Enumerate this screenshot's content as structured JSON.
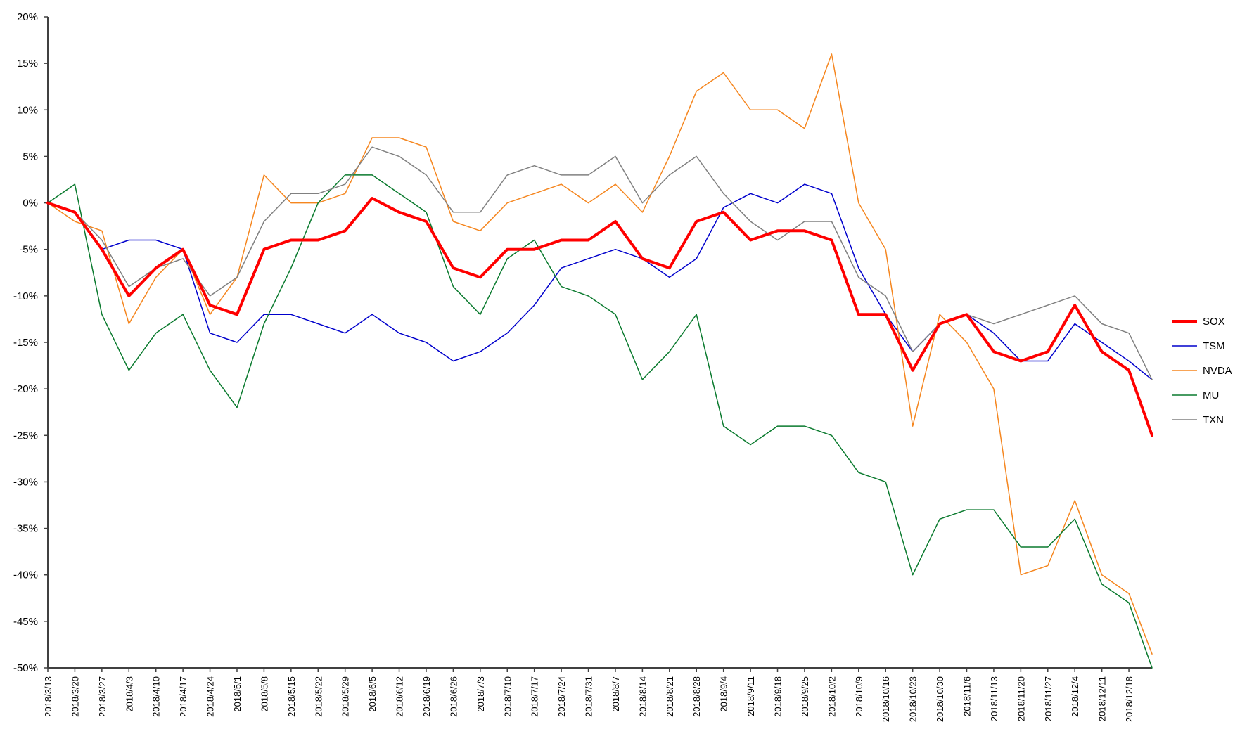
{
  "chart_data": {
    "type": "line",
    "title": "",
    "xlabel": "",
    "ylabel": "",
    "ylim": [
      -50,
      20
    ],
    "y_unit": "%",
    "y_ticks": [
      "20%",
      "15%",
      "10%",
      "5%",
      "0%",
      "-5%",
      "-10%",
      "-15%",
      "-20%",
      "-25%",
      "-30%",
      "-35%",
      "-40%",
      "-45%",
      "-50%"
    ],
    "y_tick_values": [
      20,
      15,
      10,
      5,
      0,
      -5,
      -10,
      -15,
      -20,
      -25,
      -30,
      -35,
      -40,
      -45,
      -50
    ],
    "x_ticks": [
      "2018/3/13",
      "2018/3/20",
      "2018/3/27",
      "2018/4/3",
      "2018/4/10",
      "2018/4/17",
      "2018/4/24",
      "2018/5/1",
      "2018/5/8",
      "2018/5/15",
      "2018/5/22",
      "2018/5/29",
      "2018/6/5",
      "2018/6/12",
      "2018/6/19",
      "2018/6/26",
      "2018/7/3",
      "2018/7/10",
      "2018/7/17",
      "2018/7/24",
      "2018/7/31",
      "2018/8/7",
      "2018/8/14",
      "2018/8/21",
      "2018/8/28",
      "2018/9/4",
      "2018/9/11",
      "2018/9/18",
      "2018/9/25",
      "2018/10/2",
      "2018/10/9",
      "2018/10/16",
      "2018/10/23",
      "2018/10/30",
      "2018/11/6",
      "2018/11/13",
      "2018/11/20",
      "2018/11/27",
      "2018/12/4",
      "2018/12/11",
      "2018/12/18"
    ],
    "x": [
      "2018/3/13",
      "2018/3/20",
      "2018/3/27",
      "2018/4/3",
      "2018/4/10",
      "2018/4/17",
      "2018/4/24",
      "2018/5/1",
      "2018/5/8",
      "2018/5/15",
      "2018/5/22",
      "2018/5/29",
      "2018/6/5",
      "2018/6/12",
      "2018/6/19",
      "2018/6/26",
      "2018/7/3",
      "2018/7/10",
      "2018/7/17",
      "2018/7/24",
      "2018/7/31",
      "2018/8/7",
      "2018/8/14",
      "2018/8/21",
      "2018/8/28",
      "2018/9/4",
      "2018/9/11",
      "2018/9/18",
      "2018/9/25",
      "2018/10/2",
      "2018/10/9",
      "2018/10/16",
      "2018/10/23",
      "2018/10/30",
      "2018/11/6",
      "2018/11/13",
      "2018/11/20",
      "2018/11/27",
      "2018/12/4",
      "2018/12/11",
      "2018/12/18",
      "2018/12/24"
    ],
    "legend_position": "right",
    "grid": false,
    "series": [
      {
        "name": "SOX",
        "color": "#ff0000",
        "width": 4,
        "values": [
          0,
          -1,
          -5,
          -10,
          -7,
          -5,
          -11,
          -12,
          -5,
          -4,
          -4,
          -3,
          0.5,
          -1,
          -2,
          -7,
          -8,
          -5,
          -5,
          -4,
          -4,
          -2,
          -6,
          -7,
          -2,
          -1,
          -4,
          -3,
          -3,
          -4,
          -12,
          -12,
          -18,
          -13,
          -12,
          -16,
          -17,
          -16,
          -11,
          -16,
          -18,
          -25
        ]
      },
      {
        "name": "TSM",
        "color": "#0000cc",
        "width": 1.5,
        "values": [
          0,
          -1,
          -5,
          -4,
          -4,
          -5,
          -14,
          -15,
          -12,
          -12,
          -13,
          -14,
          -12,
          -14,
          -15,
          -17,
          -16,
          -14,
          -11,
          -7,
          -6,
          -5,
          -6,
          -8,
          -6,
          -0.5,
          1,
          0,
          2,
          1,
          -7,
          -12,
          -16,
          -13,
          -12,
          -14,
          -17,
          -17,
          -13,
          -15,
          -17,
          -19
        ]
      },
      {
        "name": "NVDA",
        "color": "#f5861f",
        "width": 1.5,
        "values": [
          0,
          -2,
          -3,
          -13,
          -8,
          -5,
          -12,
          -8,
          3,
          0,
          0,
          1,
          7,
          7,
          6,
          -2,
          -3,
          0,
          1,
          2,
          0,
          2,
          -1,
          5,
          12,
          14,
          10,
          10,
          8,
          16,
          0,
          -5,
          -24,
          -12,
          -15,
          -20,
          -40,
          -39,
          -32,
          -40,
          -42,
          -48.5
        ]
      },
      {
        "name": "MU",
        "color": "#0a7a2e",
        "width": 1.5,
        "values": [
          0,
          2,
          -12,
          -18,
          -14,
          -12,
          -18,
          -22,
          -13,
          -7,
          0,
          3,
          3,
          1,
          -1,
          -9,
          -12,
          -6,
          -4,
          -9,
          -10,
          -12,
          -19,
          -16,
          -12,
          -24,
          -26,
          -24,
          -24,
          -25,
          -29,
          -30,
          -40,
          -34,
          -33,
          -33,
          -37,
          -37,
          -34,
          -41,
          -43,
          -50
        ]
      },
      {
        "name": "TXN",
        "color": "#808080",
        "width": 1.5,
        "values": [
          0,
          -1,
          -4,
          -9,
          -7,
          -6,
          -10,
          -8,
          -2,
          1,
          1,
          2,
          6,
          5,
          3,
          -1,
          -1,
          3,
          4,
          3,
          3,
          5,
          0,
          3,
          5,
          1,
          -2,
          -4,
          -2,
          -2,
          -8,
          -10,
          -16,
          -13,
          -12,
          -13,
          -12,
          -11,
          -10,
          -13,
          -14,
          -19
        ]
      }
    ]
  }
}
